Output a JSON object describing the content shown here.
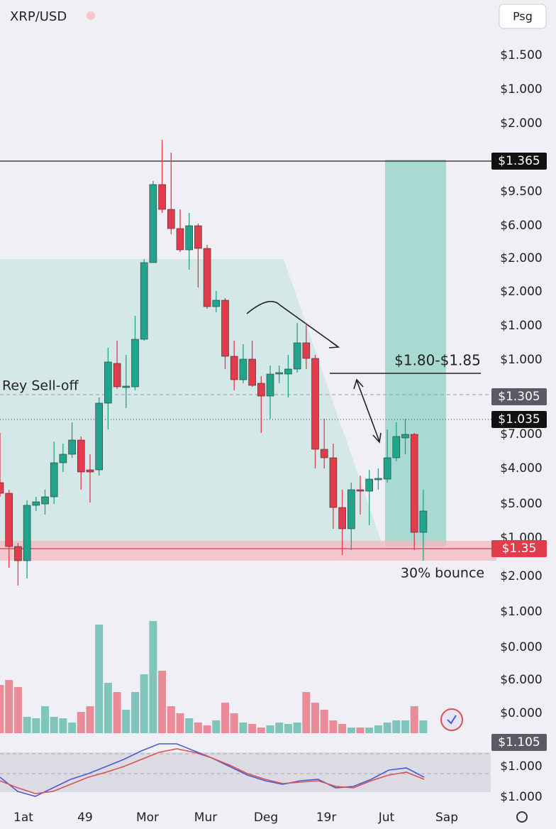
{
  "chart_data": {
    "type": "candlestick",
    "title": "XRP/USD",
    "button": "Psg",
    "candle_colors": {
      "up": "#22a38c",
      "down": "#e23b4b"
    },
    "open": [
      15.0,
      13.5,
      6.0,
      4.0,
      11.8,
      12.0,
      13.0,
      17.8,
      19.0,
      21.0,
      16.8,
      16.8,
      26.2,
      31.8,
      28.5,
      28.5,
      35.2,
      46.0,
      57.0,
      53.5,
      50.8,
      47.8,
      51.2,
      48.0,
      39.8,
      40.7,
      32.8,
      29.5,
      32.4,
      29.0,
      27.2,
      30.3,
      30.3,
      31.0,
      34.7,
      32.5,
      19.7,
      18.5,
      11.5,
      8.5,
      14.0,
      13.8,
      15.5,
      15.5,
      18.5,
      21.3,
      21.8,
      8.0
    ],
    "high": [
      22.0,
      14.0,
      6.5,
      12.5,
      13.0,
      14.0,
      20.8,
      20.5,
      23.5,
      21.5,
      19.0,
      27.0,
      34.0,
      35.0,
      33.0,
      38.5,
      46.5,
      57.5,
      63.3,
      61.5,
      53.5,
      53.0,
      51.5,
      48.5,
      42.0,
      41.0,
      35.0,
      34.5,
      35.0,
      30.0,
      31.5,
      31.5,
      33.0,
      37.5,
      37.5,
      33.0,
      24.0,
      20.5,
      14.0,
      15.0,
      16.0,
      16.8,
      17.0,
      22.5,
      23.5,
      24.0,
      22.0,
      14.0
    ],
    "low": [
      13.0,
      3.0,
      0.5,
      1.5,
      11.0,
      10.5,
      12.0,
      16.5,
      18.5,
      14.0,
      12.2,
      16.0,
      22.5,
      28.2,
      25.5,
      28.0,
      35.0,
      46.0,
      53.0,
      50.0,
      47.5,
      45.0,
      42.5,
      39.5,
      39.0,
      31.0,
      28.0,
      29.0,
      28.5,
      22.0,
      24.0,
      29.0,
      27.0,
      30.5,
      31.0,
      17.0,
      17.0,
      8.5,
      4.8,
      5.5,
      10.5,
      9.0,
      14.0,
      15.0,
      18.0,
      19.0,
      5.5,
      4.0
    ],
    "close": [
      13.5,
      6.0,
      4.0,
      11.8,
      12.3,
      13.0,
      17.8,
      19.0,
      21.0,
      16.5,
      16.5,
      26.2,
      32.0,
      28.5,
      28.6,
      35.2,
      46.0,
      57.0,
      53.5,
      50.8,
      47.8,
      51.2,
      48.0,
      39.8,
      40.7,
      32.8,
      29.5,
      32.4,
      28.7,
      27.2,
      30.3,
      30.5,
      31.0,
      34.7,
      32.5,
      19.7,
      18.5,
      11.5,
      8.5,
      14.0,
      13.8,
      15.5,
      15.6,
      18.5,
      21.5,
      21.8,
      8.0,
      11.0
    ],
    "volume": [
      68,
      75,
      65,
      23,
      21,
      38,
      23,
      21,
      15,
      30,
      38,
      153,
      71,
      58,
      33,
      58,
      83,
      158,
      88,
      38,
      28,
      21,
      15,
      11,
      18,
      43,
      28,
      15,
      13,
      8,
      11,
      15,
      13,
      15,
      58,
      43,
      33,
      18,
      13,
      8,
      8,
      8,
      11,
      15,
      18,
      18,
      38,
      18
    ],
    "indicator": [
      {
        "color": "#4a5bd6",
        "values": [
          35,
          15,
          8,
          20,
          32,
          40,
          50,
          60,
          72,
          82,
          82,
          72,
          62,
          50,
          38,
          30,
          25,
          30,
          32,
          20,
          22,
          32,
          45,
          48,
          35
        ]
      },
      {
        "color": "#d9534f",
        "values": [
          30,
          20,
          12,
          15,
          25,
          35,
          42,
          50,
          60,
          70,
          75,
          70,
          62,
          52,
          40,
          32,
          26,
          28,
          30,
          22,
          20,
          30,
          38,
          42,
          32
        ]
      }
    ],
    "y_axis_labels": [
      "$1.500",
      "$1.000",
      "$2.000",
      "$9.500",
      "$6.000",
      "$2.000",
      "$2.000",
      "$1.000",
      "$1.000",
      "$7.000",
      "$4.000",
      "$5.000",
      "$1.000",
      "$2.000",
      "$1.000",
      "$0.000",
      "$6.000",
      "$0.000",
      "$1.000",
      "$1.000"
    ],
    "price_tags": [
      "$1.365",
      "$1.305",
      "$1.035",
      "$1.35",
      "$1.105"
    ],
    "x_axis_labels": [
      "1at",
      "49",
      "Mor",
      "Mur",
      "Deg",
      "19r",
      "Jut",
      "Sap"
    ],
    "annotations": [
      "Rey Sell-off",
      "$1.80-$1.85",
      "30% bounce"
    ]
  }
}
